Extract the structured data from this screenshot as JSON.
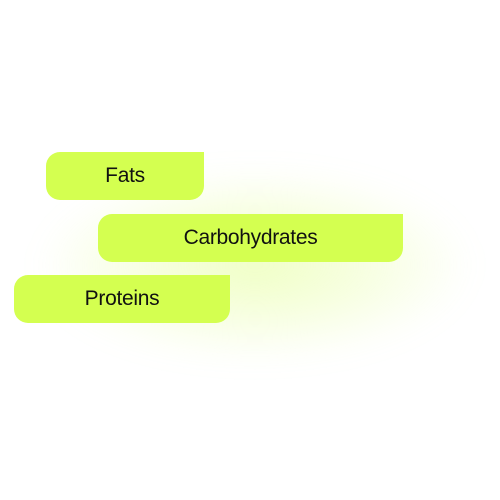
{
  "labels": {
    "fats": "Fats",
    "carbohydrates": "Carbohydrates",
    "proteins": "Proteins"
  },
  "colors": {
    "pill": "#d4ff50",
    "text": "#111111",
    "background": "#ffffff"
  }
}
